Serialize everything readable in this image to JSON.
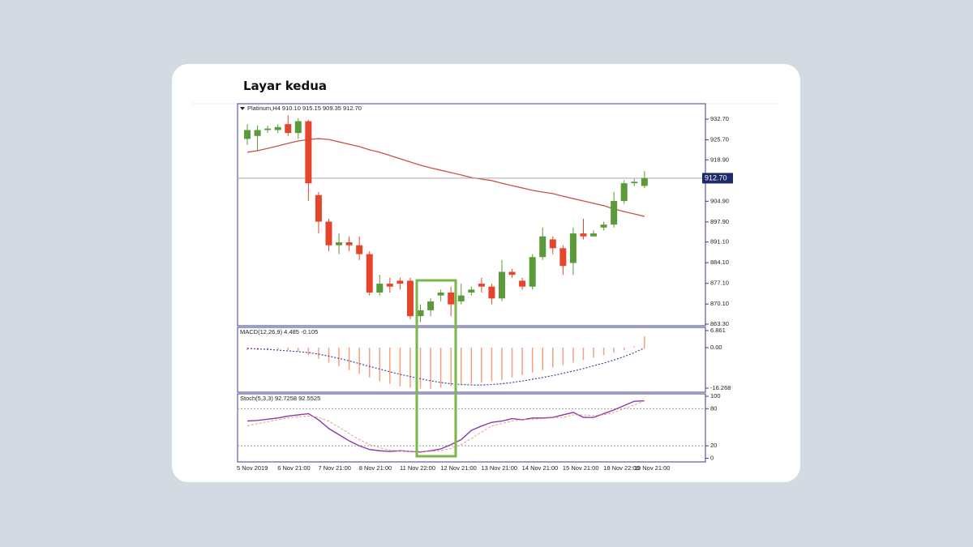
{
  "title": "Layar kedua",
  "chart_data": [
    {
      "type": "candlestick",
      "header": "Platinum,H4  910.10 915.15 909.35 912.70",
      "categories": [
        "5 Nov 2019",
        null,
        null,
        null,
        "6 Nov 21:00",
        null,
        null,
        null,
        "7 Nov 21:00",
        null,
        null,
        null,
        "8 Nov 21:00",
        null,
        null,
        null,
        "11 Nov 22:00",
        null,
        null,
        null,
        "12 Nov 21:00",
        null,
        null,
        null,
        "13 Nov 21:00",
        null,
        null,
        null,
        "14 Nov 21:00",
        null,
        null,
        null,
        "15 Nov 21:00",
        null,
        null,
        null,
        "18 Nov 22:00",
        null,
        null,
        "19 Nov 21:00"
      ],
      "open": [
        926,
        927,
        929,
        929,
        931,
        928,
        932,
        907,
        898,
        890,
        891,
        890,
        887,
        874,
        877,
        878,
        878,
        866,
        868,
        873,
        874,
        871,
        874,
        877,
        876,
        872,
        881,
        878,
        876,
        886,
        892,
        889,
        884,
        894,
        893,
        896,
        897,
        905,
        911,
        910.1
      ],
      "high": [
        931,
        930.5,
        930.5,
        931,
        934,
        933,
        932.5,
        908,
        899,
        894,
        893,
        893,
        888,
        880,
        879,
        879,
        879,
        870,
        872,
        875,
        876,
        877,
        876,
        879,
        877,
        885,
        882,
        879,
        887,
        896,
        893,
        890,
        896,
        899,
        895,
        898,
        908,
        912,
        912.5,
        915.15
      ],
      "low": [
        924,
        922,
        928,
        928,
        927,
        926,
        905,
        894,
        888,
        887,
        888,
        885,
        873,
        873,
        874,
        875,
        865,
        864,
        866,
        871,
        866,
        870,
        873,
        874,
        870,
        871,
        879,
        875,
        875,
        885,
        887,
        880,
        880,
        892,
        893,
        895,
        896,
        904,
        910,
        909.35
      ],
      "close": [
        929,
        929,
        929.5,
        930,
        928,
        932,
        911,
        898,
        890,
        891,
        890,
        887,
        874,
        877,
        876,
        877,
        866,
        868,
        871,
        874,
        870,
        873,
        875,
        876,
        872,
        881,
        880,
        876,
        886,
        893,
        889,
        883,
        894,
        893,
        894,
        897,
        905,
        911,
        911.5,
        912.7
      ],
      "up_color": "#5b9a3a",
      "down_color": "#e5452b",
      "ma": {
        "color": "#c9524a",
        "values": [
          921.5,
          922,
          922.8,
          923.6,
          924.5,
          925.3,
          925.8,
          926.1,
          925.8,
          925,
          924.2,
          923.4,
          922.3,
          921.5,
          920.4,
          919.3,
          918.2,
          917.1,
          916.2,
          915.4,
          914.6,
          913.8,
          912.9,
          912.4,
          911.9,
          911,
          910.2,
          909.4,
          908.6,
          908,
          907.5,
          906.6,
          905.8,
          905,
          904.2,
          903.4,
          902.3,
          901.4,
          900.6,
          899.8
        ]
      },
      "last_price": {
        "value": 912.7,
        "label": "912.70"
      },
      "ylim": [
        862.75,
        937.91
      ],
      "yticks": [
        {
          "value": 932.7,
          "label": "932.70"
        },
        {
          "value": 925.7,
          "label": "925.70"
        },
        {
          "value": 918.9,
          "label": "918.90"
        },
        {
          "value": 904.9,
          "label": "904.90"
        },
        {
          "value": 897.9,
          "label": "897.90"
        },
        {
          "value": 891.1,
          "label": "891.10"
        },
        {
          "value": 884.1,
          "label": "884.10"
        },
        {
          "value": 877.1,
          "label": "877.10"
        },
        {
          "value": 870.1,
          "label": "870.10"
        },
        {
          "value": 863.3,
          "label": "863.30"
        }
      ]
    },
    {
      "type": "macd",
      "header": "MACD(12,26,9) 4.485 -0.105",
      "series": [
        {
          "color": "#f3a080",
          "values": [
            -1,
            -1,
            -1,
            -1,
            -1,
            -1.5,
            -3,
            -4.5,
            -6,
            -7.5,
            -9,
            -10.5,
            -12,
            -13.5,
            -14.5,
            -15.5,
            -16,
            -16.5,
            -16.5,
            -16,
            -15.5,
            -15,
            -14.5,
            -14,
            -13.5,
            -13,
            -12,
            -11,
            -10,
            -9,
            -8,
            -7,
            -6,
            -5,
            -4,
            -3,
            -2,
            -1,
            0.5,
            4.485
          ]
        },
        {
          "color": "#4a3f9a",
          "values": [
            -0.3,
            -0.5,
            -0.7,
            -1,
            -1.3,
            -1.6,
            -2,
            -2.6,
            -3.4,
            -4.3,
            -5.3,
            -6.4,
            -7.5,
            -8.6,
            -9.7,
            -10.7,
            -11.6,
            -12.5,
            -13.3,
            -14,
            -14.5,
            -14.8,
            -15,
            -15,
            -14.8,
            -14.5,
            -14,
            -13.4,
            -12.7,
            -12,
            -11.2,
            -10.3,
            -9.4,
            -8.4,
            -7.3,
            -6.2,
            -5,
            -3.6,
            -2,
            -0.105
          ]
        }
      ],
      "ylim": [
        -17.9,
        8.14
      ],
      "yticks": [
        6.861,
        {
          "value": 0,
          "label": "0.00"
        },
        -16.268
      ]
    },
    {
      "type": "stochastic",
      "header": "Stoch(5,3,3) 92.7258 92.5525",
      "series": [
        {
          "color": "#8b3aa6",
          "values": [
            60,
            61,
            63,
            65,
            68,
            70,
            72,
            62,
            48,
            38,
            28,
            20,
            14,
            12,
            11,
            12,
            11,
            10,
            12,
            15,
            22,
            30,
            45,
            52,
            58,
            60,
            64,
            62,
            65,
            65,
            66,
            70,
            74,
            66,
            66,
            72,
            78,
            85,
            92,
            92.7258
          ]
        },
        {
          "color": "#e99a8c",
          "values": [
            52,
            56,
            59,
            62,
            65,
            67,
            68,
            66,
            60,
            50,
            40,
            30,
            22,
            17,
            13,
            12,
            11,
            11,
            11,
            12,
            16,
            22,
            32,
            42,
            52,
            56,
            60,
            62,
            63,
            64,
            65,
            66,
            70,
            70,
            69,
            70,
            74,
            80,
            86,
            92.5525
          ]
        }
      ],
      "levels": [
        80,
        20
      ],
      "ylim": [
        -6,
        104
      ],
      "yticks": [
        100,
        80,
        20,
        0
      ]
    }
  ]
}
